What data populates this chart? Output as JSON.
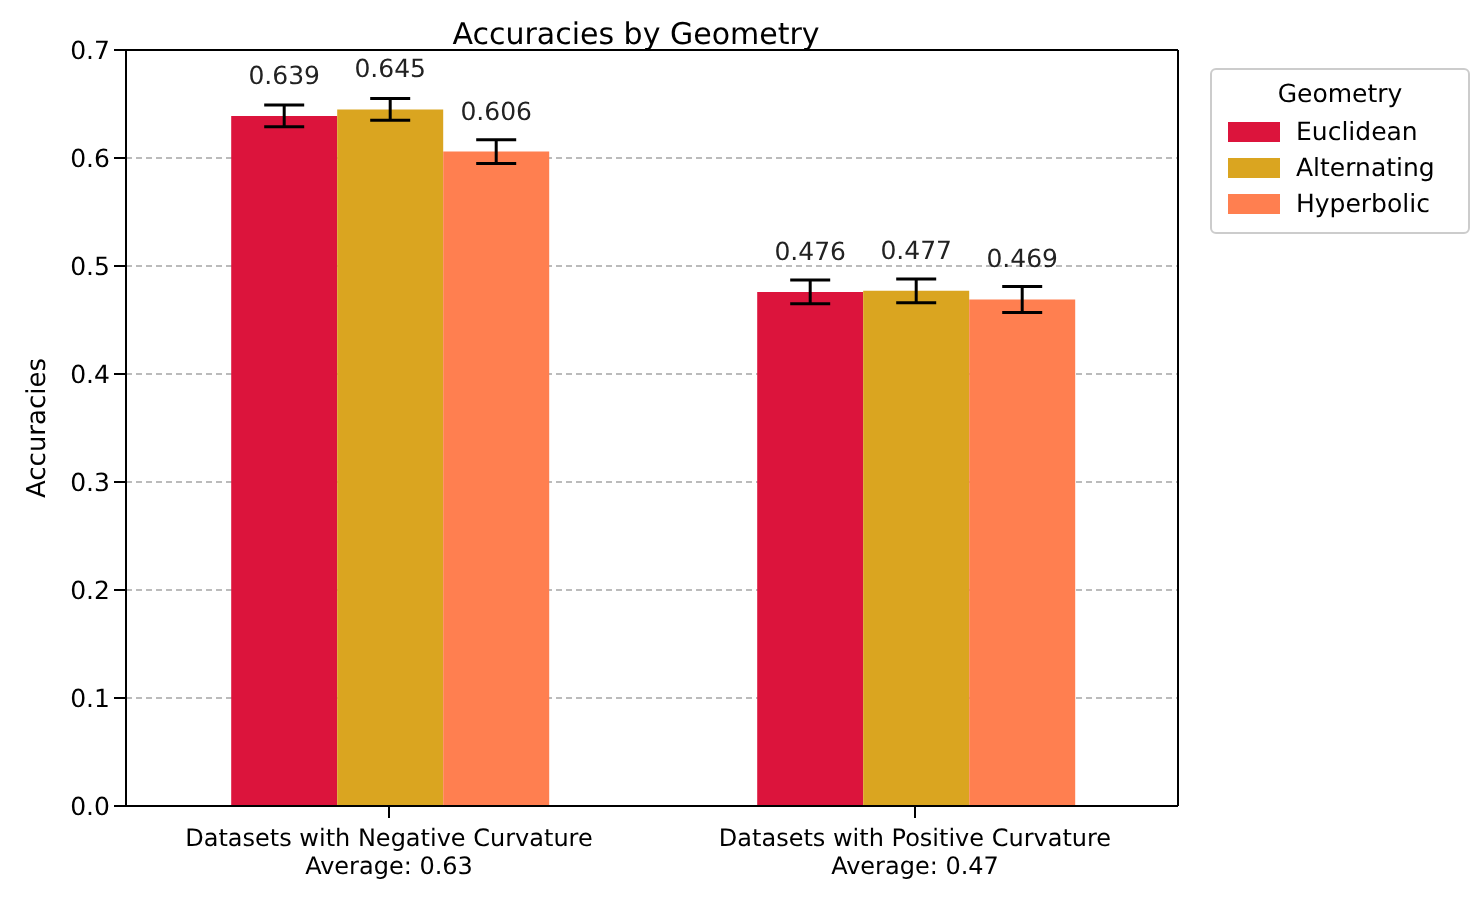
{
  "chart_data": {
    "type": "bar",
    "title": "Accuracies by Geometry",
    "ylabel": "Accuracies",
    "legend_title": "Geometry",
    "categories": [
      "Datasets with Negative Curvature\nAverage: 0.63",
      "Datasets with Positive Curvature\nAverage: 0.47"
    ],
    "series": [
      {
        "name": "Euclidean",
        "color": "#dc143c",
        "values": [
          0.639,
          0.476
        ],
        "errors": [
          0.01,
          0.011
        ]
      },
      {
        "name": "Alternating",
        "color": "#daa520",
        "values": [
          0.645,
          0.477
        ],
        "errors": [
          0.01,
          0.011
        ]
      },
      {
        "name": "Hyperbolic",
        "color": "#ff7f50",
        "values": [
          0.606,
          0.469
        ],
        "errors": [
          0.011,
          0.012
        ]
      }
    ],
    "ylim": [
      0,
      0.7
    ],
    "yticks": [
      {
        "value": 0,
        "label": "0.0"
      },
      0.1,
      0.2,
      0.3,
      0.4,
      0.5,
      0.6,
      0.7
    ],
    "grid": "y",
    "legend": "top right",
    "data_labels": true
  }
}
